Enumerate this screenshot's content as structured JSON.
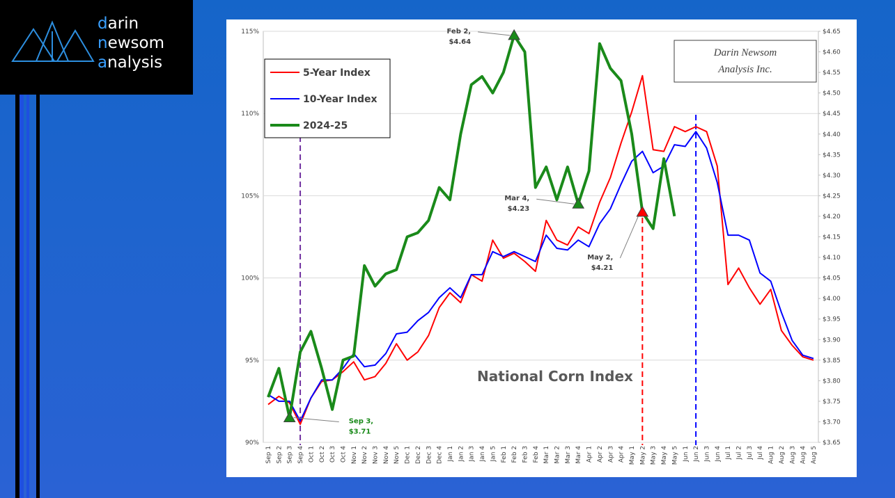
{
  "logo": [
    "darin",
    "newsom",
    "analysis"
  ],
  "watermark": [
    "Darin Newsom",
    "Analysis Inc."
  ],
  "chart_data": {
    "type": "line",
    "title": "National Corn Index",
    "categories": [
      "Sep 1",
      "Sep 2",
      "Sep 3",
      "Sep 4",
      "Oct 1",
      "Oct 2",
      "Oct 3",
      "Oct 4",
      "Nov 1",
      "Nov 2",
      "Nov 3",
      "Nov 4",
      "Nov 5",
      "Dec 1",
      "Dec 2",
      "Dec 3",
      "Dec 4",
      "Jan 1",
      "Jan 2",
      "Jan 3",
      "Jan 4",
      "Jan 5",
      "Feb 1",
      "Feb 2",
      "Feb 3",
      "Feb 4",
      "Mar 1",
      "Mar 2",
      "Mar 3",
      "Mar 4",
      "Apr 1",
      "Apr 2",
      "Apr 3",
      "Apr 4",
      "May 1",
      "May 2",
      "May 3",
      "May 4",
      "May 5",
      "Jun 1",
      "Jun 2",
      "Jun 3",
      "Jun 4",
      "Jul 1",
      "Jul 2",
      "Jul 3",
      "Jul 4",
      "Aug 1",
      "Aug 2",
      "Aug 3",
      "Aug 4",
      "Aug 5"
    ],
    "series": [
      {
        "name": "5-Year Index",
        "color": "#ff0000",
        "values": [
          92.3,
          92.8,
          92.4,
          91.1,
          92.7,
          93.7,
          93.8,
          94.3,
          94.9,
          93.8,
          94.0,
          94.8,
          96.0,
          95.0,
          95.5,
          96.5,
          98.2,
          99.1,
          98.5,
          100.2,
          99.8,
          102.3,
          101.2,
          101.5,
          101.0,
          100.4,
          103.5,
          102.3,
          102.0,
          103.1,
          102.7,
          104.6,
          106.1,
          108.2,
          110.1,
          112.3,
          107.8,
          107.7,
          109.2,
          108.9,
          109.2,
          108.9,
          106.8,
          99.6,
          100.6,
          99.4,
          98.4,
          99.3,
          96.8,
          95.9,
          95.2,
          95.0
        ]
      },
      {
        "name": "10-Year Index",
        "color": "#0000ff",
        "values": [
          92.9,
          92.5,
          92.5,
          91.3,
          92.7,
          93.8,
          93.8,
          94.5,
          95.4,
          94.6,
          94.7,
          95.4,
          96.6,
          96.7,
          97.4,
          97.9,
          98.8,
          99.4,
          98.8,
          100.2,
          100.2,
          101.6,
          101.3,
          101.6,
          101.3,
          101.0,
          102.6,
          101.8,
          101.7,
          102.3,
          101.9,
          103.3,
          104.2,
          105.7,
          107.1,
          107.7,
          106.4,
          106.8,
          108.1,
          108.0,
          108.9,
          107.9,
          105.8,
          102.6,
          102.6,
          102.3,
          100.3,
          99.8,
          97.9,
          96.2,
          95.3,
          95.1
        ]
      },
      {
        "name": "2024-25",
        "color": "#1a8a1a",
        "axis": "y2",
        "values": [
          3.76,
          3.83,
          3.71,
          3.87,
          3.92,
          3.83,
          3.73,
          3.85,
          3.86,
          4.08,
          4.03,
          4.06,
          4.07,
          4.15,
          4.16,
          4.19,
          4.27,
          4.24,
          4.4,
          4.52,
          4.54,
          4.5,
          4.55,
          4.64,
          4.6,
          4.27,
          4.32,
          4.24,
          4.32,
          4.23,
          4.31,
          4.62,
          4.56,
          4.53,
          4.4,
          4.21,
          4.17,
          4.34,
          4.2,
          null,
          null,
          null,
          null,
          null,
          null,
          null,
          null,
          null,
          null,
          null,
          null,
          null
        ]
      }
    ],
    "ylim": [
      90,
      115
    ],
    "yticks": [
      {
        "value": 90,
        "label": "90%"
      },
      {
        "value": 95,
        "label": "95%"
      },
      {
        "value": 100,
        "label": "100%"
      },
      {
        "value": 105,
        "label": "105%"
      },
      {
        "value": 110,
        "label": "110%"
      },
      {
        "value": 115,
        "label": "115%"
      }
    ],
    "y2lim": [
      3.65,
      4.65
    ],
    "y2ticks": [
      {
        "value": 3.65,
        "label": "$3.65"
      },
      {
        "value": 3.7,
        "label": "$3.70"
      },
      {
        "value": 3.75,
        "label": "$3.75"
      },
      {
        "value": 3.8,
        "label": "$3.80"
      },
      {
        "value": 3.85,
        "label": "$3.85"
      },
      {
        "value": 3.9,
        "label": "$3.90"
      },
      {
        "value": 3.95,
        "label": "$3.95"
      },
      {
        "value": 4.0,
        "label": "$4.00"
      },
      {
        "value": 4.05,
        "label": "$4.05"
      },
      {
        "value": 4.1,
        "label": "$4.10"
      },
      {
        "value": 4.15,
        "label": "$4.15"
      },
      {
        "value": 4.2,
        "label": "$4.20"
      },
      {
        "value": 4.25,
        "label": "$4.25"
      },
      {
        "value": 4.3,
        "label": "$4.30"
      },
      {
        "value": 4.35,
        "label": "$4.35"
      },
      {
        "value": 4.4,
        "label": "$4.40"
      },
      {
        "value": 4.45,
        "label": "$4.45"
      },
      {
        "value": 4.5,
        "label": "$4.50"
      },
      {
        "value": 4.55,
        "label": "$4.55"
      },
      {
        "value": 4.6,
        "label": "$4.60"
      },
      {
        "value": 4.65,
        "label": "$4.65"
      }
    ],
    "grid": true,
    "markers": [
      {
        "x": "Sep 3",
        "value": 3.71,
        "axis": "y2",
        "color": "#1a8a1a",
        "label_color": "#1a8a1a",
        "label": [
          "Sep 3,",
          "$3.71"
        ]
      },
      {
        "x": "Feb 2",
        "value": 4.64,
        "axis": "y2",
        "color": "#1a8a1a",
        "label_color": "#404040",
        "label": [
          "Feb 2,",
          "$4.64"
        ]
      },
      {
        "x": "Mar 4",
        "value": 4.23,
        "axis": "y2",
        "color": "#1a8a1a",
        "label_color": "#404040",
        "label": [
          "Mar 4,",
          "$4.23"
        ]
      },
      {
        "x": "May 2",
        "value": 4.21,
        "axis": "y2",
        "color": "#ff0000",
        "label_color": "#404040",
        "label": [
          "May 2,",
          "$4.21"
        ]
      }
    ],
    "vlines": [
      {
        "x": "Sep 4",
        "color": "#7030a0"
      },
      {
        "x": "May 2",
        "color": "#ff0000"
      },
      {
        "x": "Jun 2",
        "color": "#0000ff"
      }
    ]
  }
}
